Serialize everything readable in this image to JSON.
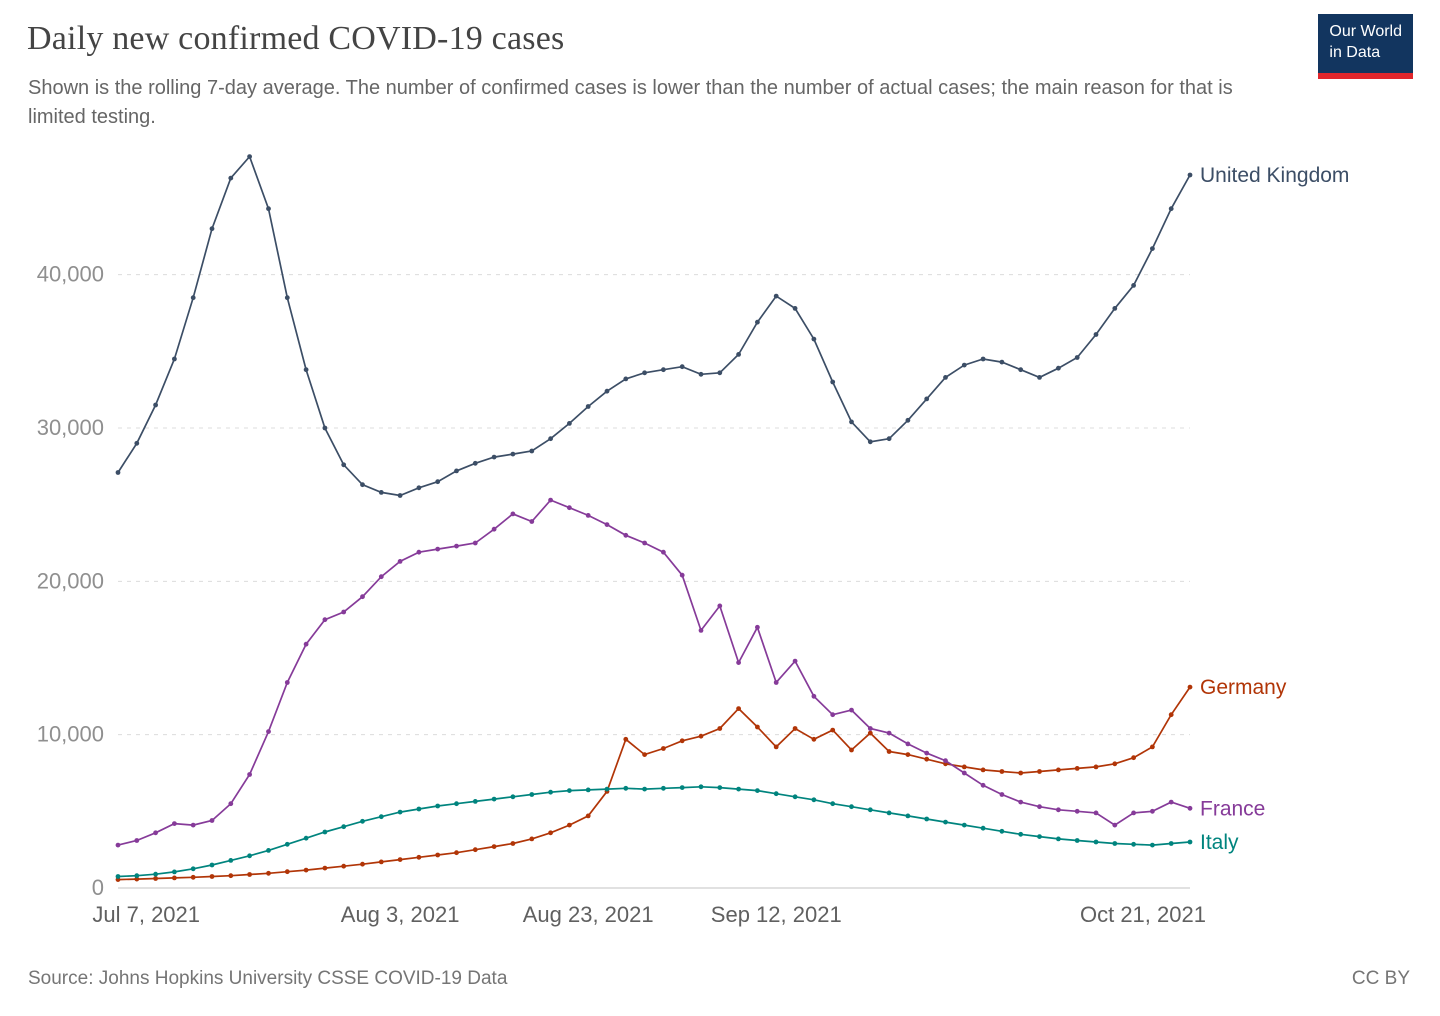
{
  "header": {
    "title": "Daily new confirmed COVID-19 cases",
    "subtitle": "Shown is the rolling 7-day average. The number of confirmed cases is lower than the number of actual cases; the main reason for that is limited testing.",
    "logo": {
      "line1": "Our World",
      "line2": "in Data",
      "bg_color": "#12355f",
      "accent_color": "#e0262c"
    }
  },
  "footer": {
    "source": "Source: Johns Hopkins University CSSE COVID-19 Data",
    "license": "CC BY"
  },
  "colors": {
    "grid": "#dcdcdc",
    "axis": "#c3c3c3",
    "title": "#444444",
    "subtitle": "#666666"
  },
  "chart_data": {
    "type": "line",
    "title": "Daily new confirmed COVID-19 cases",
    "xlabel": "",
    "ylabel": "",
    "grid": "dashed horizontal gridlines",
    "legend_position": "end-of-line labels at right",
    "ylim": [
      0,
      48000
    ],
    "yticks": [
      0,
      10000,
      20000,
      30000,
      40000
    ],
    "ytick_labels": [
      "0",
      "10,000",
      "20,000",
      "30,000",
      "40,000"
    ],
    "x_step_days": 2,
    "total_days": 114,
    "x": [
      "Jul 4",
      "Jul 6",
      "Jul 8",
      "Jul 10",
      "Jul 12",
      "Jul 14",
      "Jul 16",
      "Jul 18",
      "Jul 20",
      "Jul 22",
      "Jul 24",
      "Jul 26",
      "Jul 28",
      "Jul 30",
      "Aug 1",
      "Aug 3",
      "Aug 5",
      "Aug 7",
      "Aug 9",
      "Aug 11",
      "Aug 13",
      "Aug 15",
      "Aug 17",
      "Aug 19",
      "Aug 21",
      "Aug 23",
      "Aug 25",
      "Aug 27",
      "Aug 29",
      "Aug 31",
      "Sep 2",
      "Sep 4",
      "Sep 6",
      "Sep 8",
      "Sep 10",
      "Sep 12",
      "Sep 14",
      "Sep 16",
      "Sep 18",
      "Sep 20",
      "Sep 22",
      "Sep 24",
      "Sep 26",
      "Sep 28",
      "Sep 30",
      "Oct 2",
      "Oct 4",
      "Oct 6",
      "Oct 8",
      "Oct 10",
      "Oct 12",
      "Oct 14",
      "Oct 16",
      "Oct 18",
      "Oct 20",
      "Oct 22",
      "Oct 24",
      "Oct 26"
    ],
    "xticks": [
      {
        "label": "Jul 7, 2021",
        "day": 3
      },
      {
        "label": "Aug 3, 2021",
        "day": 30
      },
      {
        "label": "Aug 23, 2021",
        "day": 50
      },
      {
        "label": "Sep 12, 2021",
        "day": 70
      },
      {
        "label": "Oct 21, 2021",
        "day": 109
      }
    ],
    "series": [
      {
        "name": "United Kingdom",
        "color": "#3C4E66",
        "values": [
          27100,
          29000,
          31500,
          34500,
          38500,
          43000,
          46300,
          47700,
          44300,
          38500,
          33800,
          30000,
          27600,
          26300,
          25800,
          25600,
          26100,
          26500,
          27200,
          27700,
          28100,
          28300,
          28500,
          29300,
          30300,
          31400,
          32400,
          33200,
          33600,
          33800,
          34000,
          33500,
          33600,
          34800,
          36900,
          38600,
          37800,
          35800,
          33000,
          30400,
          29100,
          29300,
          30500,
          31900,
          33300,
          34100,
          34500,
          34300,
          33800,
          33300,
          33900,
          34600,
          36100,
          37800,
          39300,
          41700,
          44300,
          46500
        ]
      },
      {
        "name": "Germany",
        "color": "#B13507",
        "values": [
          550,
          580,
          620,
          660,
          700,
          750,
          800,
          880,
          960,
          1060,
          1170,
          1300,
          1420,
          1550,
          1700,
          1850,
          2000,
          2150,
          2300,
          2500,
          2700,
          2900,
          3200,
          3600,
          4100,
          4700,
          6300,
          9700,
          8700,
          9100,
          9600,
          9900,
          10400,
          11700,
          10500,
          9200,
          10400,
          9700,
          10300,
          9000,
          10100,
          8900,
          8700,
          8400,
          8100,
          7900,
          7700,
          7600,
          7500,
          7600,
          7700,
          7800,
          7900,
          8100,
          8500,
          9200,
          11300,
          13100
        ]
      },
      {
        "name": "France",
        "color": "#863B99",
        "values": [
          2800,
          3100,
          3600,
          4200,
          4100,
          4400,
          5500,
          7400,
          10200,
          13400,
          15900,
          17500,
          18000,
          19000,
          20300,
          21300,
          21900,
          22100,
          22300,
          22500,
          23400,
          24400,
          23900,
          25300,
          24800,
          24300,
          23700,
          23000,
          22500,
          21900,
          20400,
          16800,
          18400,
          14700,
          17000,
          13400,
          14800,
          12500,
          11300,
          11600,
          10400,
          10100,
          9400,
          8800,
          8300,
          7500,
          6700,
          6100,
          5600,
          5300,
          5100,
          5000,
          4900,
          4100,
          4900,
          5000,
          5600,
          5200
        ]
      },
      {
        "name": "Italy",
        "color": "#00847E",
        "values": [
          750,
          800,
          900,
          1050,
          1250,
          1500,
          1800,
          2100,
          2450,
          2850,
          3250,
          3650,
          4000,
          4350,
          4650,
          4950,
          5150,
          5350,
          5500,
          5650,
          5800,
          5950,
          6100,
          6250,
          6350,
          6400,
          6450,
          6500,
          6450,
          6500,
          6550,
          6600,
          6550,
          6450,
          6350,
          6150,
          5950,
          5750,
          5500,
          5300,
          5100,
          4900,
          4700,
          4500,
          4300,
          4100,
          3900,
          3700,
          3500,
          3350,
          3200,
          3100,
          3000,
          2900,
          2850,
          2800,
          2900,
          3000
        ]
      }
    ]
  }
}
